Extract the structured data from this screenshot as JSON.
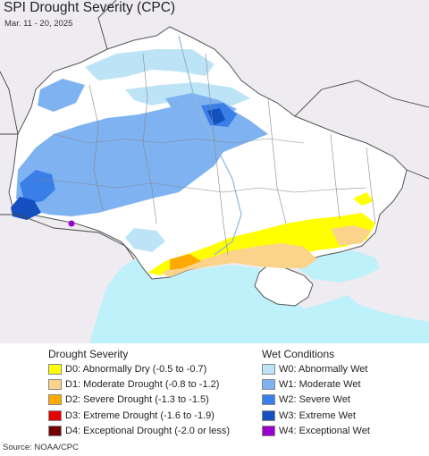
{
  "title": "SPI Drought Severity (CPC)",
  "subtitle": "Mar. 11 - 20, 2025",
  "source": "Source: NOAA/CPC",
  "colors": {
    "background": "#efecf1",
    "land": "#ffffff",
    "sea": "#bff1fa",
    "border": "#555555",
    "D0": "#ffff00",
    "D1": "#fcd38a",
    "D2": "#ffaa00",
    "D3": "#e60000",
    "D4": "#730000",
    "W0": "#bde4f6",
    "W1": "#7fb2f1",
    "W2": "#3a7ee8",
    "W3": "#1550c0",
    "W4": "#9900cc"
  },
  "legend": {
    "drought": {
      "heading": "Drought Severity",
      "items": [
        {
          "label": "D0: Abnormally Dry (-0.5 to -0.7)",
          "color": "#ffff00"
        },
        {
          "label": "D1: Moderate Drought (-0.8 to -1.2)",
          "color": "#fcd38a"
        },
        {
          "label": "D2: Severe Drought (-1.3 to -1.5)",
          "color": "#ffaa00"
        },
        {
          "label": "D3: Extreme Drought (-1.6 to -1.9)",
          "color": "#e60000"
        },
        {
          "label": "D4: Exceptional Drought (-2.0 or less)",
          "color": "#730000"
        }
      ]
    },
    "wet": {
      "heading": "Wet Conditions",
      "items": [
        {
          "label": "W0: Abnormally Wet",
          "color": "#bde4f6"
        },
        {
          "label": "W1: Moderate Wet",
          "color": "#7fb2f1"
        },
        {
          "label": "W2: Severe Wet",
          "color": "#3a7ee8"
        },
        {
          "label": "W3: Extreme Wet",
          "color": "#1550c0"
        },
        {
          "label": "W4: Exceptional Wet",
          "color": "#9900cc"
        }
      ]
    }
  }
}
